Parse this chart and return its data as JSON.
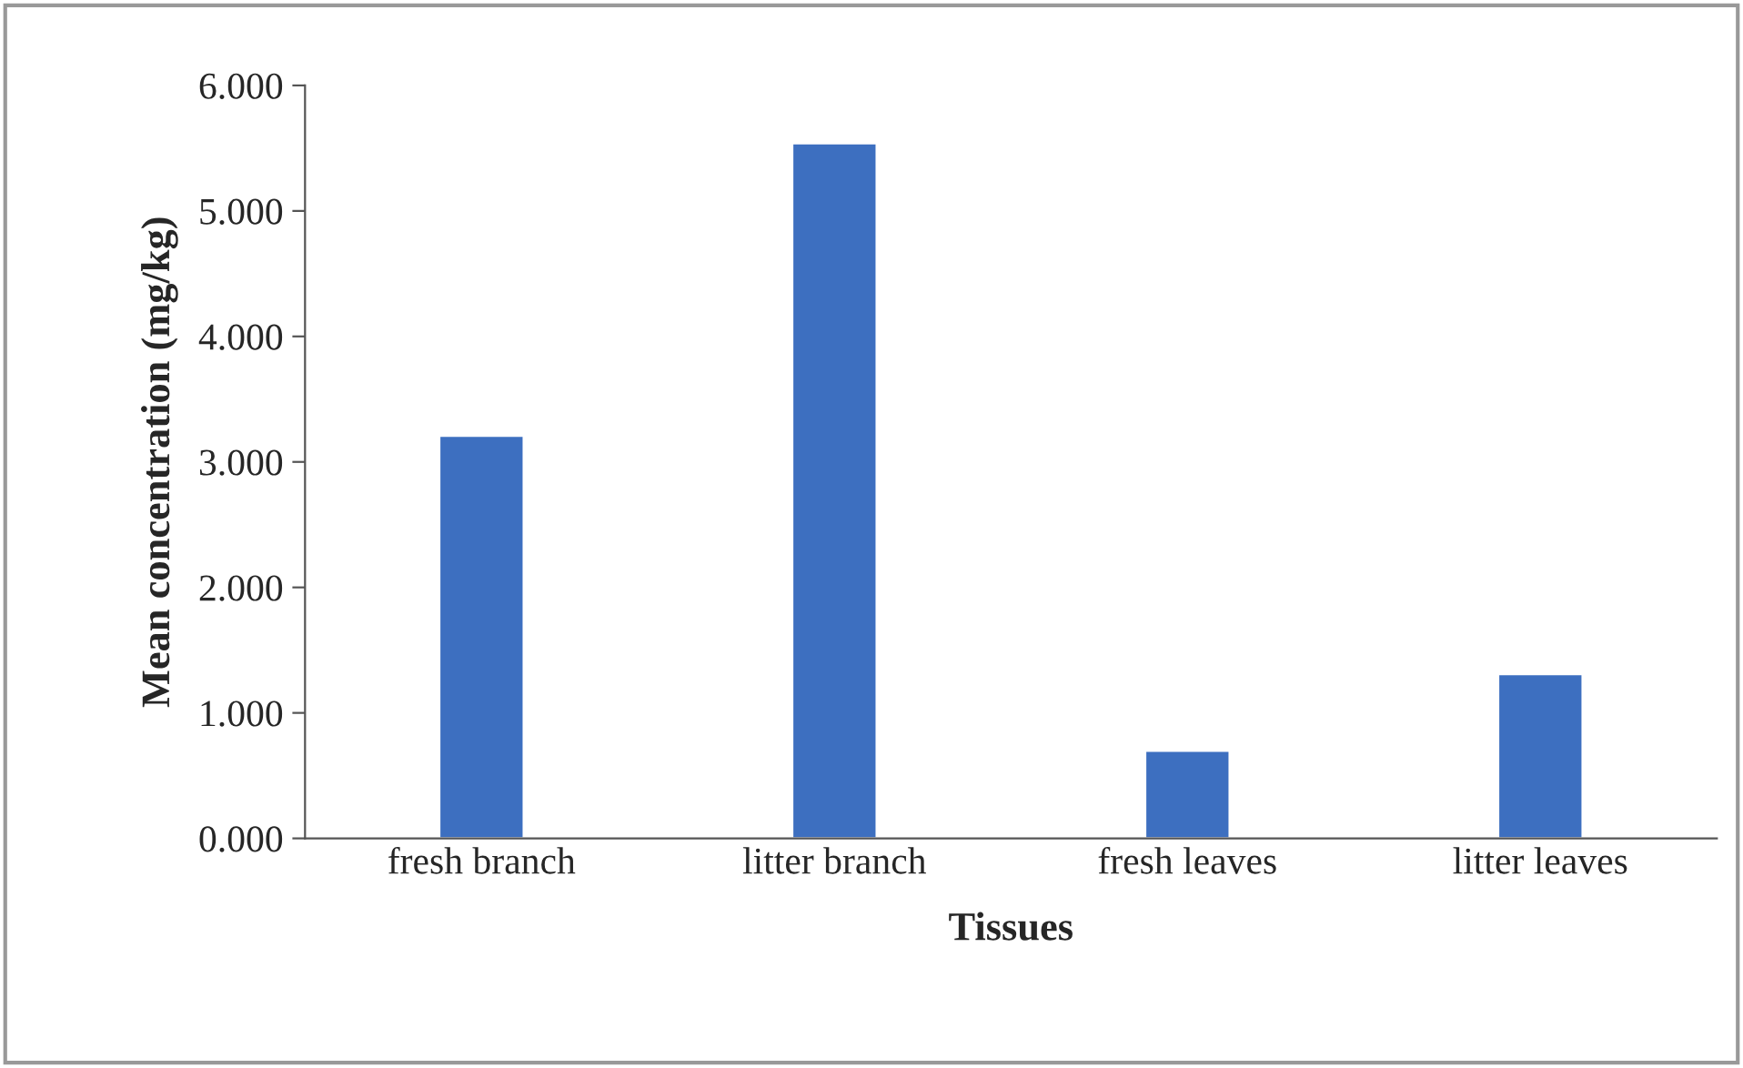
{
  "chart_data": {
    "type": "bar",
    "xlabel": "Tissues",
    "ylabel": "Mean concentration (mg/kg)",
    "categories": [
      "fresh branch",
      "litter branch",
      "fresh leaves",
      "litter leaves"
    ],
    "values": [
      3.21,
      5.54,
      0.7,
      1.31
    ],
    "color": "#3d6fc0",
    "ylim": [
      0,
      6
    ],
    "yticks": [
      {
        "value": 0,
        "label": "0.000"
      },
      {
        "value": 1,
        "label": "1.000"
      },
      {
        "value": 2,
        "label": "2.000"
      },
      {
        "value": 3,
        "label": "3.000"
      },
      {
        "value": 4,
        "label": "4.000"
      },
      {
        "value": 5,
        "label": "5.000"
      },
      {
        "value": 6,
        "label": "6.000"
      }
    ],
    "grid": false,
    "legend": false
  }
}
